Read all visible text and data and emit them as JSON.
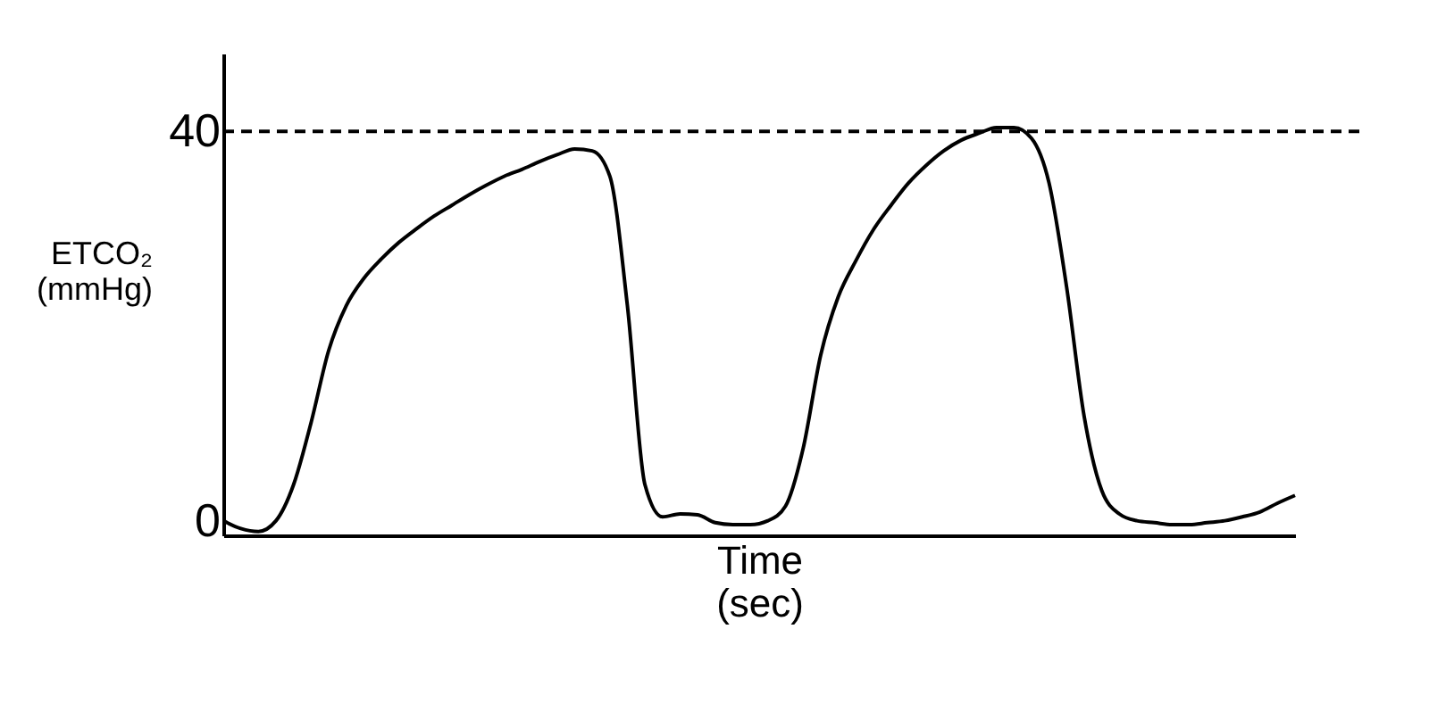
{
  "chart_data": {
    "type": "line",
    "xlabel": "Time\n(sec)",
    "ylabel": "ETCO₂\n(mmHg)",
    "categories": [
      null,
      null,
      null,
      null,
      null,
      null,
      null,
      null,
      null,
      null,
      null,
      null,
      null,
      null,
      null,
      null,
      null,
      null,
      null,
      null,
      null,
      null,
      null,
      null,
      null,
      null,
      null,
      null,
      null,
      null,
      null,
      null,
      null,
      null,
      null,
      null,
      null,
      null,
      null,
      null,
      null,
      null,
      null,
      null,
      null,
      null,
      null,
      null,
      null,
      null,
      null,
      null,
      null,
      null,
      null,
      null,
      null,
      null,
      null,
      null,
      null,
      null
    ],
    "series": [
      {
        "color": "#000000",
        "values": [
          0,
          -0.8,
          -1.1,
          0,
          3.7,
          10.1,
          17.5,
          22.1,
          24.9,
          26.9,
          28.6,
          30.0,
          31.3,
          32.4,
          33.5,
          34.5,
          35.4,
          36.1,
          36.9,
          37.6,
          38.2,
          38.0,
          35.4,
          22.1,
          3.7,
          0.4,
          0.7,
          0.6,
          -0.2,
          -0.4,
          -0.4,
          0,
          1.5,
          7.4,
          17.0,
          23.0,
          26.7,
          29.9,
          32.4,
          34.7,
          36.5,
          38.0,
          39.1,
          39.8,
          40.4,
          40.4,
          39.3,
          34.7,
          24.0,
          10.7,
          3.1,
          0.7,
          0,
          -0.2,
          -0.4,
          -0.4,
          -0.2,
          0,
          0.4,
          0.9,
          1.8,
          2.6
        ]
      }
    ],
    "ylim": [
      -1.5,
      48
    ],
    "yticks": [
      0,
      40
    ],
    "tick_labels": "y",
    "grid": false,
    "marker": "none",
    "line_style": "solid",
    "ref_lines": [
      {
        "axis": "y",
        "value": 40,
        "line_style": "dashed",
        "color": "#000000"
      }
    ]
  }
}
